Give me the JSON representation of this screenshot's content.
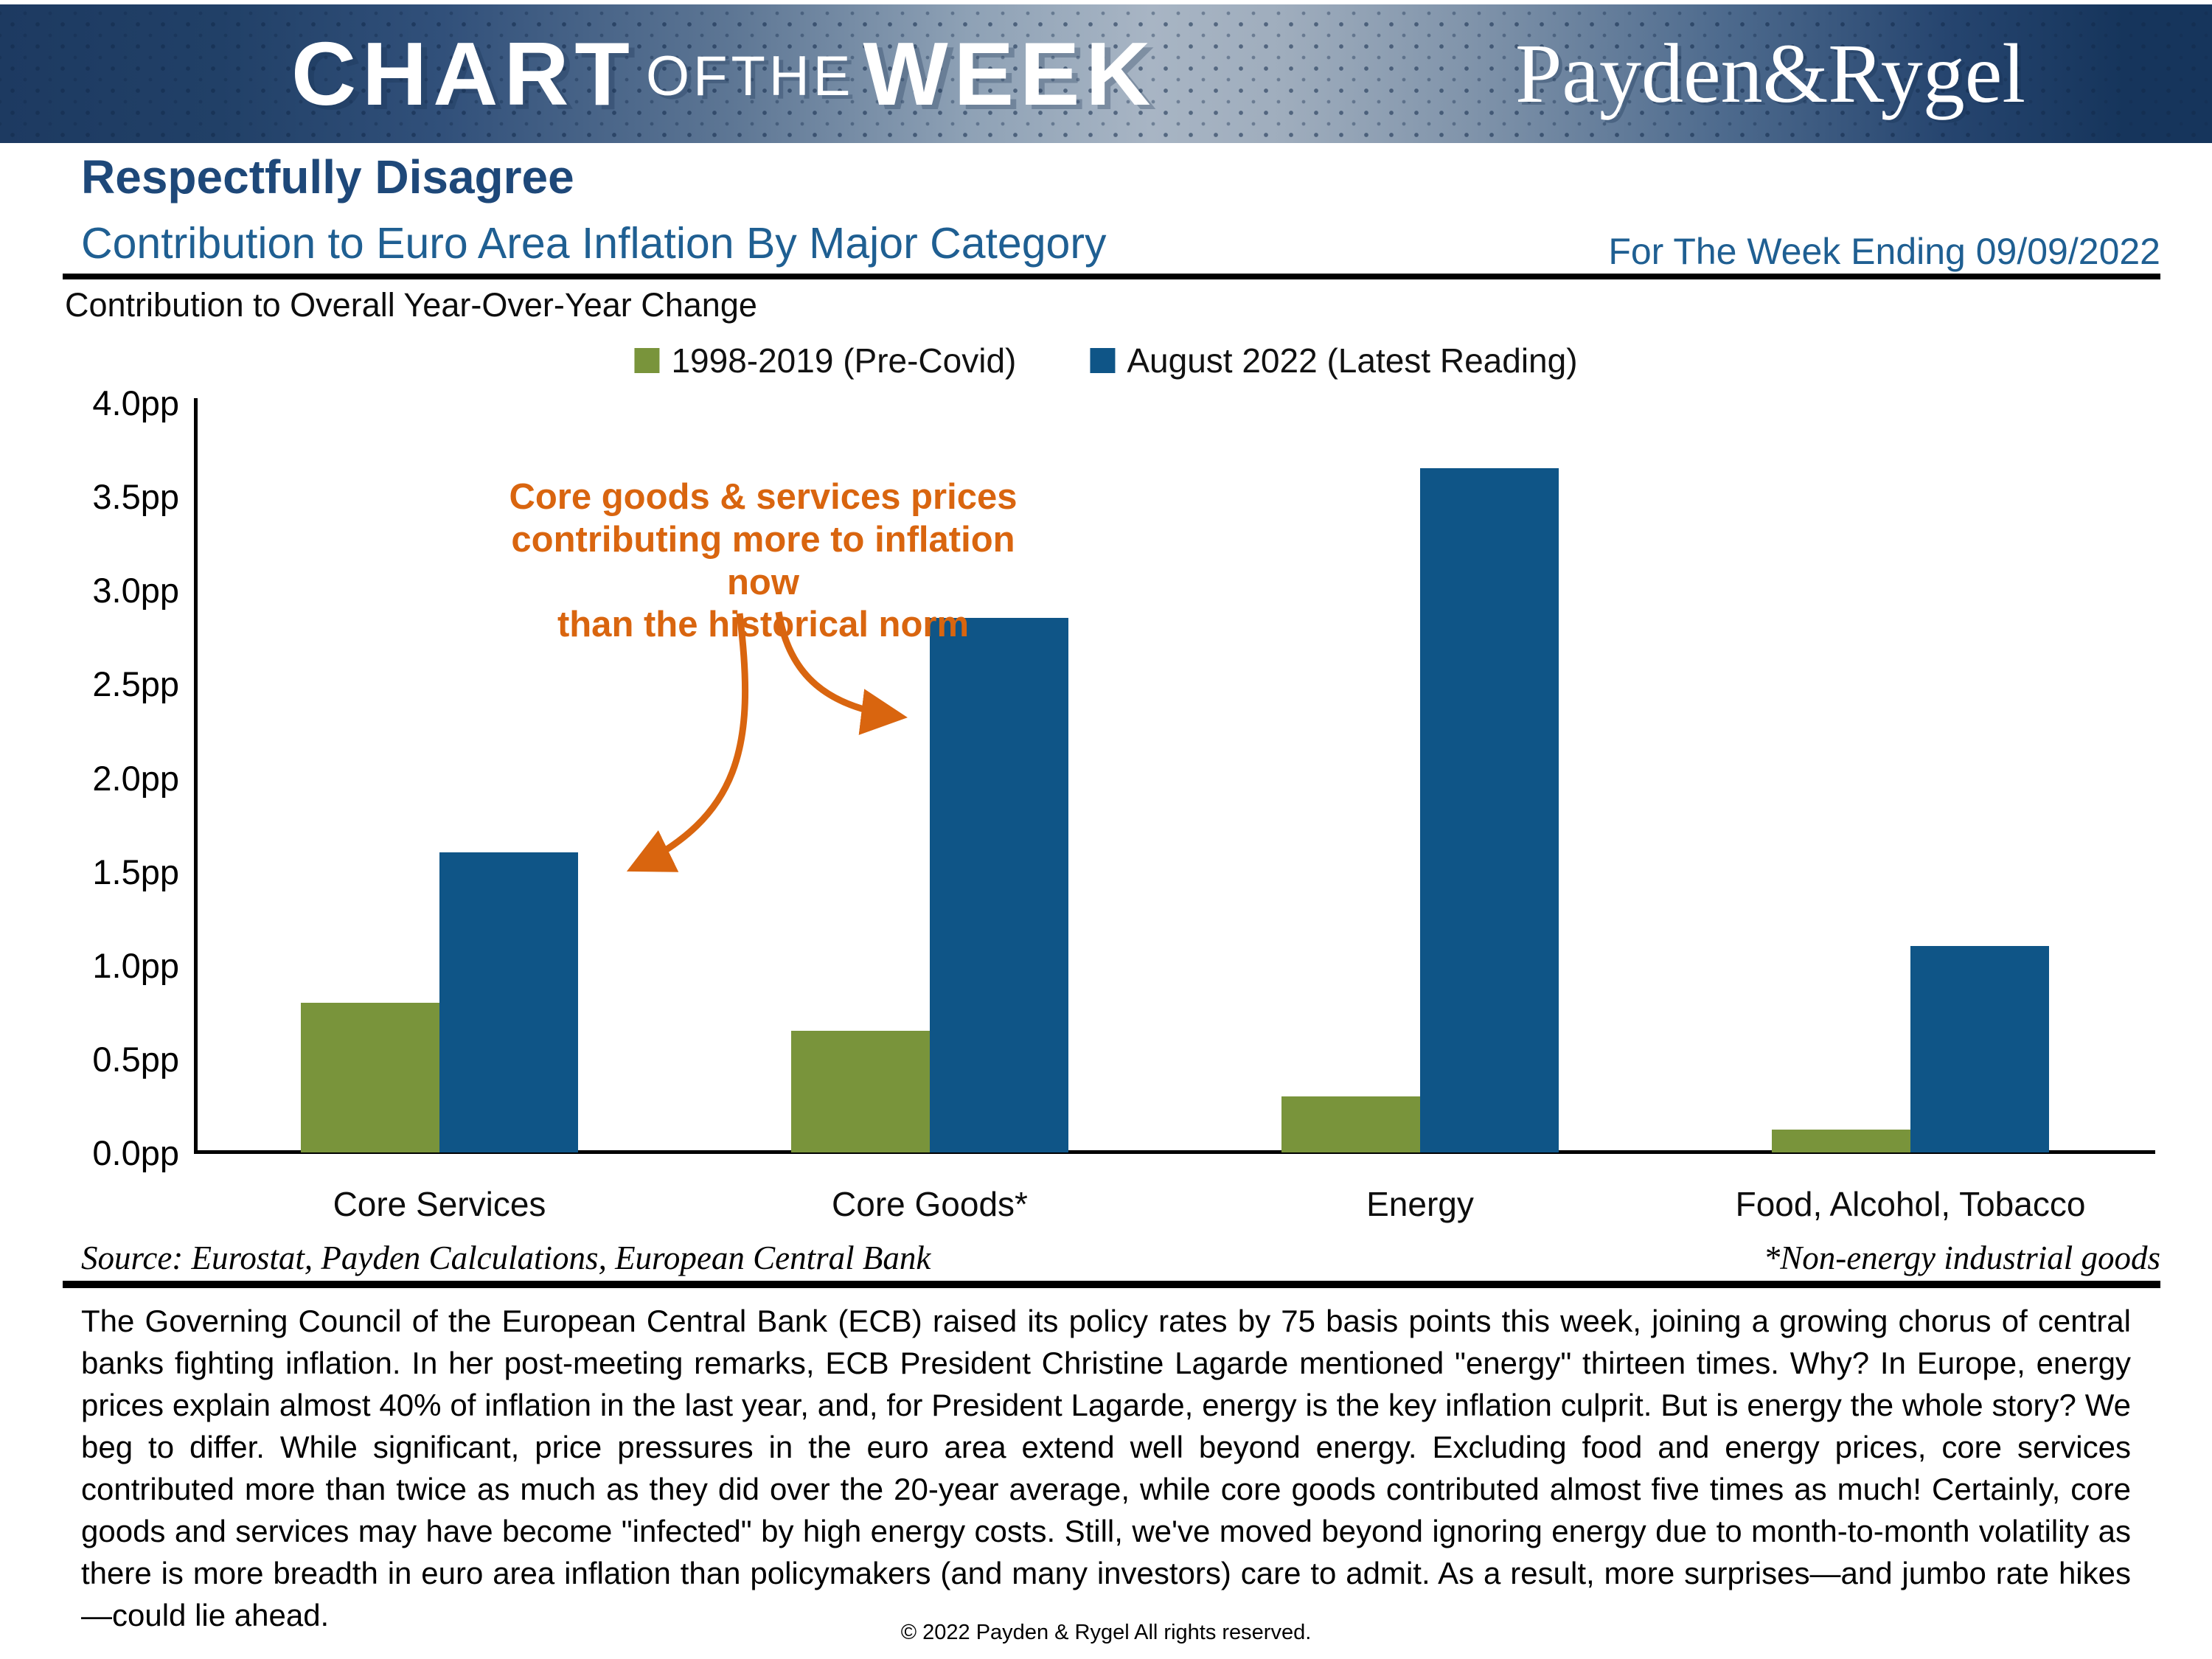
{
  "banner": {
    "title_part1": "CHART",
    "title_part2": "OFTHE",
    "title_part3": "WEEK",
    "logo": "Payden&Rygel"
  },
  "header": {
    "title": "Respectfully Disagree",
    "subtitle": "Contribution to Euro Area Inflation By Major Category",
    "week_ending": "For The Week Ending 09/09/2022"
  },
  "chart_note": "Contribution to Overall Year-Over-Year Change",
  "chart_data": {
    "type": "bar",
    "title": "Contribution to Overall Year-Over-Year Change",
    "categories": [
      "Core Services",
      "Core Goods*",
      "Energy",
      "Food, Alcohol, Tobacco"
    ],
    "series": [
      {
        "name": "1998-2019 (Pre-Covid)",
        "color": "#79943B",
        "values": [
          0.8,
          0.65,
          0.3,
          0.12
        ]
      },
      {
        "name": "August 2022 (Latest Reading)",
        "color": "#0F5587",
        "values": [
          1.6,
          2.85,
          3.65,
          1.1
        ]
      }
    ],
    "ylim": [
      0,
      4
    ],
    "ytick_step": 0.5,
    "ytick_suffix": "pp",
    "grid": false,
    "legend_position": "top-center",
    "annotation": {
      "text": "Core goods & services prices\ncontributing more to inflation now\nthan the historical norm",
      "color": "#D9650F",
      "points_to": [
        "August 2022 bar of Core Services",
        "August 2022 bar of Core Goods*"
      ]
    }
  },
  "source_line": "Source: Eurostat, Payden Calculations, European Central Bank",
  "footnote": "*Non-energy industrial goods",
  "body_text": "The Governing Council of the European Central Bank (ECB) raised its policy rates by 75 basis points this week, joining a growing chorus of central banks fighting inflation. In her post-meeting remarks, ECB President Christine Lagarde mentioned \"energy\" thirteen times. Why? In Europe, energy prices explain almost 40% of inflation in the last year, and, for President Lagarde, energy is the key inflation culprit. But is energy the whole story? We beg to differ. While significant, price pressures in the euro area extend well beyond energy. Excluding food and energy prices, core services contributed more than twice as much as they did over the 20-year average, while core goods contributed almost five times as much! Certainly, core goods and services may have become \"infected\" by high energy costs. Still, we've moved beyond ignoring energy due to month-to-month volatility as there is more breadth in euro area inflation than policymakers (and many investors) care to admit. As a result, more surprises—and jumbo rate hikes—could lie ahead.",
  "footer": "© 2022 Payden & Rygel All rights reserved."
}
